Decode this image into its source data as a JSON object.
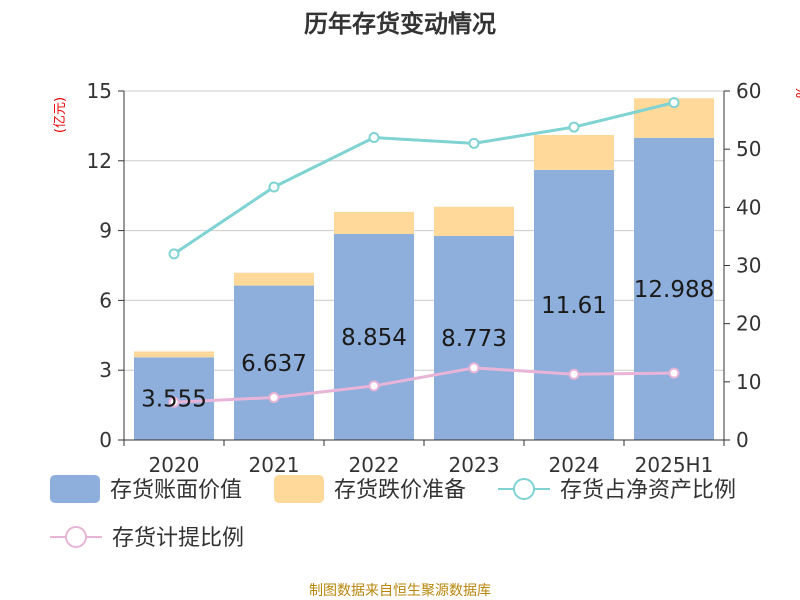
{
  "chart_data": {
    "type": "bar",
    "title": "历年存货变动情况",
    "categories": [
      "2020",
      "2021",
      "2022",
      "2023",
      "2024",
      "2025H1"
    ],
    "left_axis": {
      "unit_label": "(亿元)",
      "ticks": [
        "0",
        "3",
        "6",
        "9",
        "12",
        "15"
      ],
      "range": [
        0,
        15
      ]
    },
    "right_axis": {
      "unit_label": "%",
      "ticks": [
        "0",
        "10",
        "20",
        "30",
        "40",
        "50",
        "60"
      ],
      "range": [
        0,
        60
      ]
    },
    "series": [
      {
        "name": "存货账面价值",
        "type": "bar",
        "stack": "inventory",
        "axis": "left",
        "color": "#8eaedb",
        "values": [
          3.555,
          6.637,
          8.854,
          8.773,
          11.61,
          12.988
        ],
        "labels": [
          "3.555",
          "6.637",
          "8.854",
          "8.773",
          "11.61",
          "12.988"
        ]
      },
      {
        "name": "存货跌价准备",
        "type": "bar",
        "stack": "inventory",
        "axis": "left",
        "color": "#ffd99a",
        "values": [
          0.25,
          0.55,
          0.95,
          1.25,
          1.5,
          1.7
        ]
      },
      {
        "name": "存货占净资产比例",
        "type": "line",
        "axis": "right",
        "color": "#7fd3d3",
        "values": [
          32.0,
          43.5,
          52.0,
          51.0,
          53.8,
          58.0
        ]
      },
      {
        "name": "存货计提比例",
        "type": "line",
        "axis": "right",
        "color": "#e8b4d8",
        "values": [
          6.5,
          7.3,
          9.3,
          12.4,
          11.3,
          11.5
        ]
      }
    ],
    "grid": true,
    "legend_position": "bottom"
  },
  "footer": {
    "source": "制图数据来自恒生聚源数据库"
  }
}
